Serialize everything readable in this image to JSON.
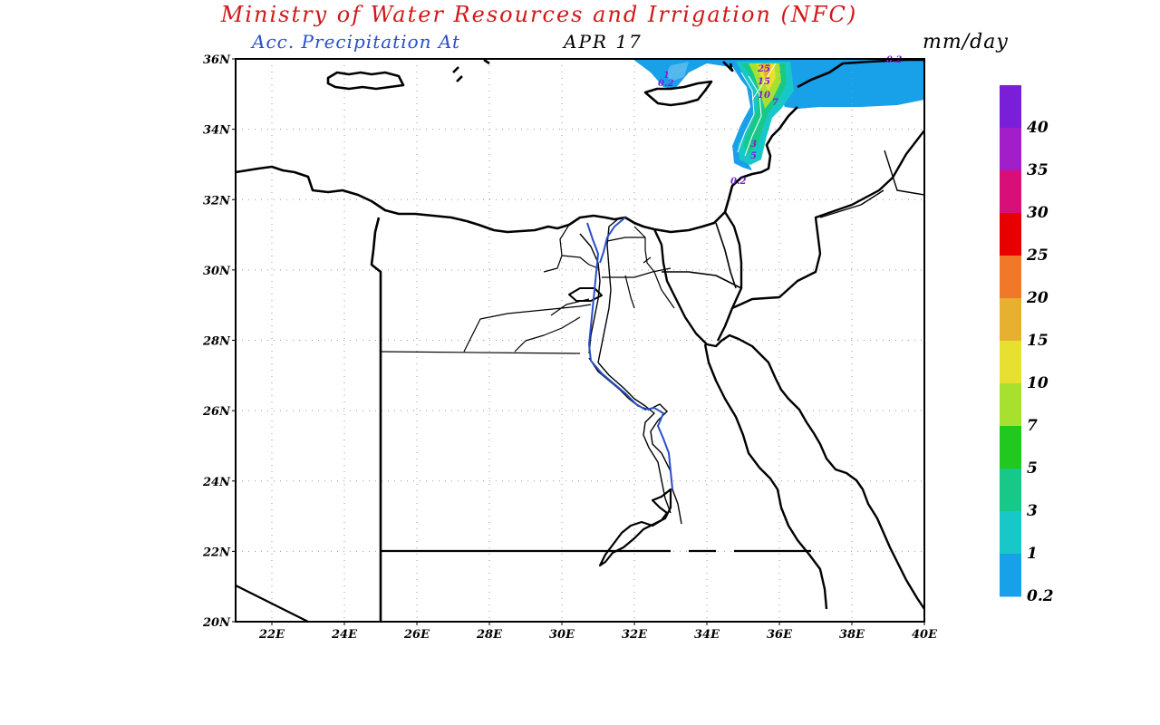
{
  "header": {
    "title": "Ministry of Water Resources and Irrigation (NFC)",
    "subtitle": "Acc. Precipitation  At",
    "date": "APR 17",
    "units": "mm/day",
    "title_color": "#d01818",
    "subtitle_color": "#2a4fc8"
  },
  "map": {
    "lat_labels": [
      "36N",
      "34N",
      "32N",
      "30N",
      "28N",
      "26N",
      "24N",
      "22N",
      "20N"
    ],
    "lon_labels": [
      "22E",
      "24E",
      "26E",
      "28E",
      "30E",
      "32E",
      "34E",
      "36E",
      "38E",
      "40E"
    ],
    "lat_values": [
      36,
      34,
      32,
      30,
      28,
      26,
      24,
      22,
      20
    ],
    "lon_values": [
      22,
      24,
      26,
      28,
      30,
      32,
      34,
      36,
      38,
      40
    ],
    "contour_labels": [
      "0.2",
      "0.2",
      "1",
      "25",
      "15",
      "10",
      "7",
      "3",
      "5",
      "0.2"
    ]
  },
  "legend": {
    "labels": [
      "40",
      "35",
      "30",
      "25",
      "20",
      "15",
      "10",
      "7",
      "5",
      "3",
      "1",
      "0.2"
    ],
    "colors": [
      "#7a1fd8",
      "#a21ec8",
      "#d80f78",
      "#e80000",
      "#f07828",
      "#e8b030",
      "#e8e030",
      "#a8e030",
      "#20c820",
      "#18c888",
      "#18c8c8",
      "#18a0e8"
    ]
  }
}
